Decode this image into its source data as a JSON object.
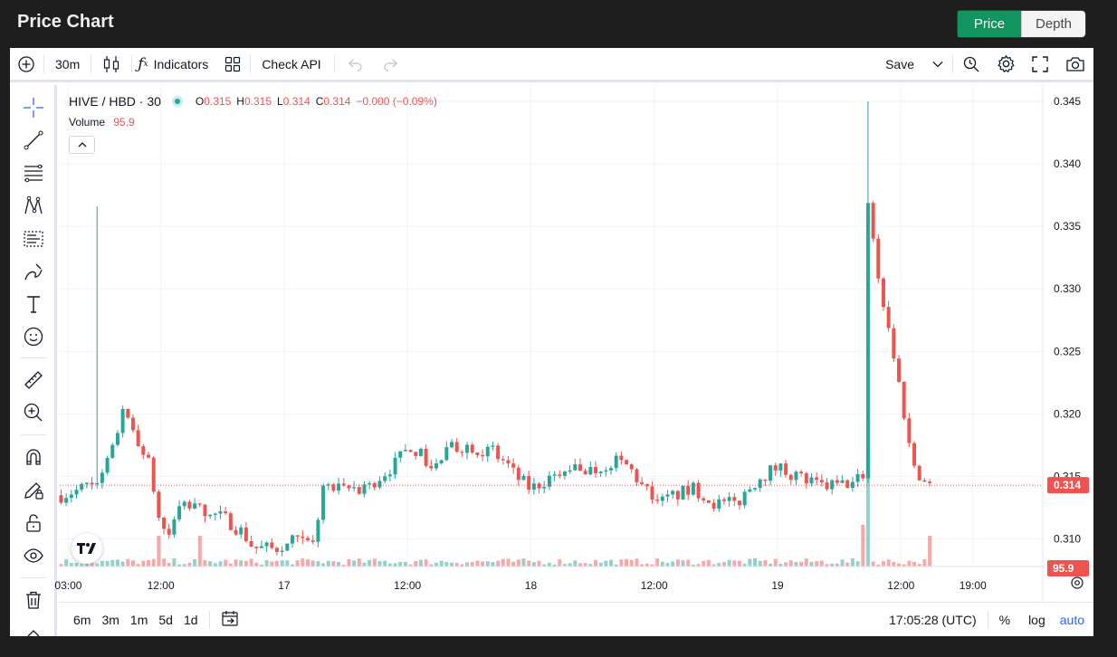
{
  "app": {
    "title": "Price Chart"
  },
  "view_toggle": {
    "price_label": "Price",
    "depth_label": "Depth"
  },
  "toolbar": {
    "interval": "30m",
    "indicators_label": "Indicators",
    "check_api_label": "Check API",
    "save_label": "Save"
  },
  "legend": {
    "symbol": "HIVE / HBD · 30",
    "o_key": "O",
    "o_val": "0.315",
    "h_key": "H",
    "h_val": "0.315",
    "l_key": "L",
    "l_val": "0.314",
    "c_key": "C",
    "c_val": "0.314",
    "change": "−0.000 (−0.09%)",
    "volume_key": "Volume",
    "volume_val": "95.9"
  },
  "bottom": {
    "ranges": [
      "6m",
      "3m",
      "1m",
      "5d",
      "1d"
    ],
    "time": "17:05:28 (UTC)",
    "percent_label": "%",
    "log_label": "log",
    "auto_label": "auto"
  },
  "colors": {
    "up": "#26a69a",
    "down": "#ef5350",
    "accent": "#12945f",
    "auto": "#2962ff"
  },
  "chart_data": {
    "type": "candlestick",
    "symbol": "HIVE / HBD",
    "interval": "30",
    "y_ticks": [
      "0.345",
      "0.340",
      "0.335",
      "0.330",
      "0.325",
      "0.320",
      "0.315",
      "0.310"
    ],
    "y_tick_values": [
      0.345,
      0.34,
      0.335,
      0.33,
      0.325,
      0.32,
      0.315,
      0.31
    ],
    "ylim": [
      0.3078,
      0.3463
    ],
    "x_ticks": [
      "03:00",
      "12:00",
      "17",
      "12:00",
      "18",
      "12:00",
      "19",
      "12:00",
      "19:00"
    ],
    "x_tick_hours": [
      3,
      12,
      24,
      36,
      48,
      60,
      72,
      84,
      91
    ],
    "xlim_hours": [
      2.17,
      97.8
    ],
    "last_price": "0.314",
    "last_price_value": 0.3143,
    "last_volume": "95.9",
    "grid": true,
    "legend_position": "top-left",
    "anchors": [
      [
        2.3,
        0.3135
      ],
      [
        5.0,
        0.3142
      ],
      [
        6.4,
        0.3152
      ],
      [
        7.2,
        0.3168
      ],
      [
        8.2,
        0.32
      ],
      [
        9.4,
        0.3185
      ],
      [
        10.8,
        0.316
      ],
      [
        11.8,
        0.3118
      ],
      [
        12.6,
        0.31
      ],
      [
        14.0,
        0.3128
      ],
      [
        16.5,
        0.3122
      ],
      [
        18.5,
        0.3115
      ],
      [
        20.0,
        0.3105
      ],
      [
        21.0,
        0.3093
      ],
      [
        23.0,
        0.3092
      ],
      [
        24.8,
        0.3098
      ],
      [
        26.8,
        0.3095
      ],
      [
        27.8,
        0.3142
      ],
      [
        29.5,
        0.3138
      ],
      [
        31.5,
        0.314
      ],
      [
        33.0,
        0.3148
      ],
      [
        34.8,
        0.316
      ],
      [
        36.4,
        0.3175
      ],
      [
        37.5,
        0.3165
      ],
      [
        38.5,
        0.3155
      ],
      [
        40.0,
        0.3172
      ],
      [
        42.0,
        0.3175
      ],
      [
        44.0,
        0.317
      ],
      [
        45.5,
        0.3162
      ],
      [
        46.5,
        0.315
      ],
      [
        48.0,
        0.314
      ],
      [
        50.0,
        0.315
      ],
      [
        52.0,
        0.3158
      ],
      [
        54.0,
        0.3155
      ],
      [
        56.0,
        0.3162
      ],
      [
        57.5,
        0.3158
      ],
      [
        59.0,
        0.314
      ],
      [
        60.3,
        0.3128
      ],
      [
        62.0,
        0.3135
      ],
      [
        64.0,
        0.314
      ],
      [
        66.0,
        0.3128
      ],
      [
        68.0,
        0.3128
      ],
      [
        70.0,
        0.3148
      ],
      [
        72.0,
        0.3158
      ],
      [
        74.0,
        0.315
      ],
      [
        76.0,
        0.3142
      ],
      [
        78.0,
        0.3143
      ],
      [
        79.5,
        0.3145
      ],
      [
        80.3,
        0.3152
      ],
      [
        80.8,
        0.337
      ],
      [
        81.3,
        0.334
      ],
      [
        82.0,
        0.33
      ],
      [
        83.0,
        0.326
      ],
      [
        84.0,
        0.3215
      ],
      [
        85.0,
        0.3165
      ],
      [
        86.0,
        0.3148
      ],
      [
        86.8,
        0.3143
      ]
    ],
    "spikes": [
      {
        "hour": 5.7,
        "high": 0.3366
      },
      {
        "hour": 80.9,
        "high": 0.345
      }
    ],
    "volume_spikes": [
      {
        "hour": 11.8,
        "volume": "high"
      },
      {
        "hour": 15.6,
        "volume": "high"
      },
      {
        "hour": 80.5,
        "volume": "very-high"
      },
      {
        "hour": 80.9,
        "volume": "peak"
      },
      {
        "hour": 86.6,
        "volume": "high"
      }
    ]
  }
}
